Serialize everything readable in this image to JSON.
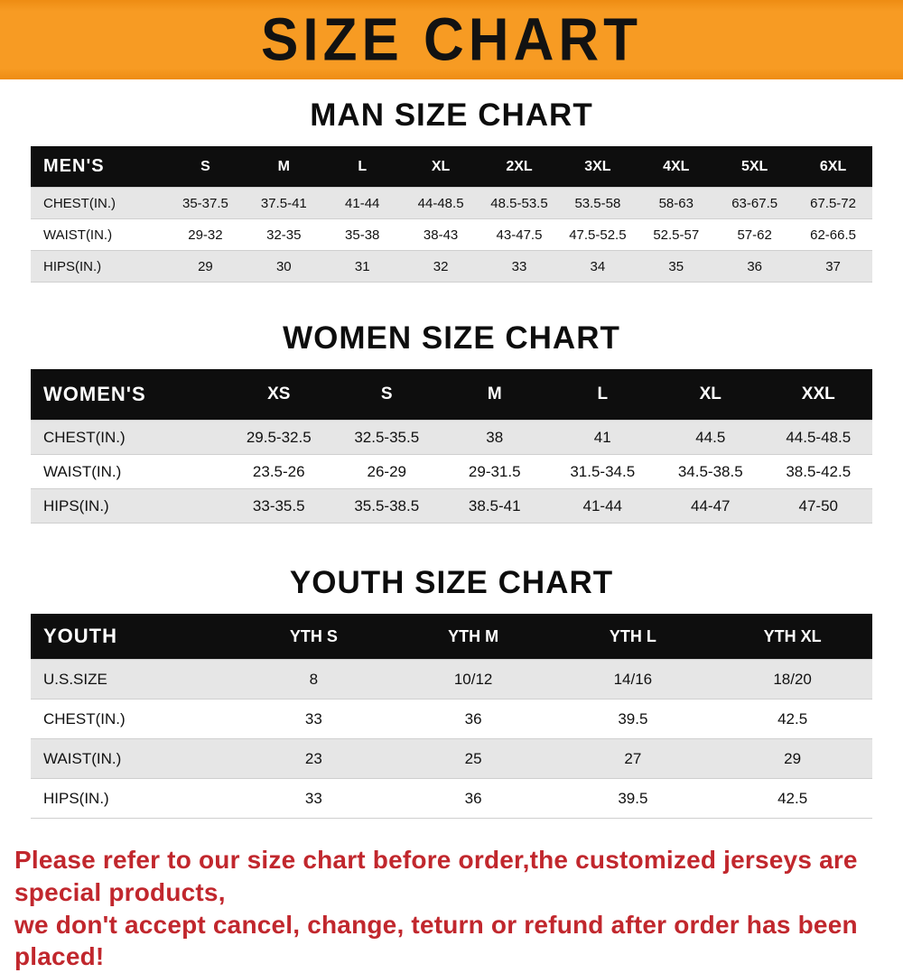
{
  "banner": {
    "title": "SIZE CHART",
    "bg_color": "#f79b23",
    "text_color": "#121212"
  },
  "sections": [
    {
      "heading": "MAN SIZE CHART",
      "table": {
        "header_label": "MEN'S",
        "columns": [
          "S",
          "M",
          "L",
          "XL",
          "2XL",
          "3XL",
          "4XL",
          "5XL",
          "6XL"
        ],
        "rows": [
          {
            "label": "CHEST(IN.)",
            "values": [
              "35-37.5",
              "37.5-41",
              "41-44",
              "44-48.5",
              "48.5-53.5",
              "53.5-58",
              "58-63",
              "63-67.5",
              "67.5-72"
            ]
          },
          {
            "label": "WAIST(IN.)",
            "values": [
              "29-32",
              "32-35",
              "35-38",
              "38-43",
              "43-47.5",
              "47.5-52.5",
              "52.5-57",
              "57-62",
              "62-66.5"
            ]
          },
          {
            "label": "HIPS(IN.)",
            "values": [
              "29",
              "30",
              "31",
              "32",
              "33",
              "34",
              "35",
              "36",
              "37"
            ]
          }
        ]
      }
    },
    {
      "heading": "WOMEN SIZE CHART",
      "table": {
        "header_label": "WOMEN'S",
        "columns": [
          "XS",
          "S",
          "M",
          "L",
          "XL",
          "XXL"
        ],
        "rows": [
          {
            "label": "CHEST(IN.)",
            "values": [
              "29.5-32.5",
              "32.5-35.5",
              "38",
              "41",
              "44.5",
              "44.5-48.5"
            ]
          },
          {
            "label": "WAIST(IN.)",
            "values": [
              "23.5-26",
              "26-29",
              "29-31.5",
              "31.5-34.5",
              "34.5-38.5",
              "38.5-42.5"
            ]
          },
          {
            "label": "HIPS(IN.)",
            "values": [
              "33-35.5",
              "35.5-38.5",
              "38.5-41",
              "41-44",
              "44-47",
              "47-50"
            ]
          }
        ]
      }
    },
    {
      "heading": "YOUTH SIZE CHART",
      "table": {
        "header_label": "YOUTH",
        "columns": [
          "YTH S",
          "YTH M",
          "YTH L",
          "YTH XL"
        ],
        "rows": [
          {
            "label": "U.S.SIZE",
            "values": [
              "8",
              "10/12",
              "14/16",
              "18/20"
            ]
          },
          {
            "label": "CHEST(IN.)",
            "values": [
              "33",
              "36",
              "39.5",
              "42.5"
            ]
          },
          {
            "label": "WAIST(IN.)",
            "values": [
              "23",
              "25",
              "27",
              "29"
            ]
          },
          {
            "label": "HIPS(IN.)",
            "values": [
              "33",
              "36",
              "39.5",
              "42.5"
            ]
          }
        ]
      }
    }
  ],
  "footer": {
    "line1": "Please refer to our size chart before order,the customized jerseys are special products,",
    "line2": "we don't accept cancel, change, teturn or refund after order has been placed!",
    "text_color": "#c1272d"
  }
}
